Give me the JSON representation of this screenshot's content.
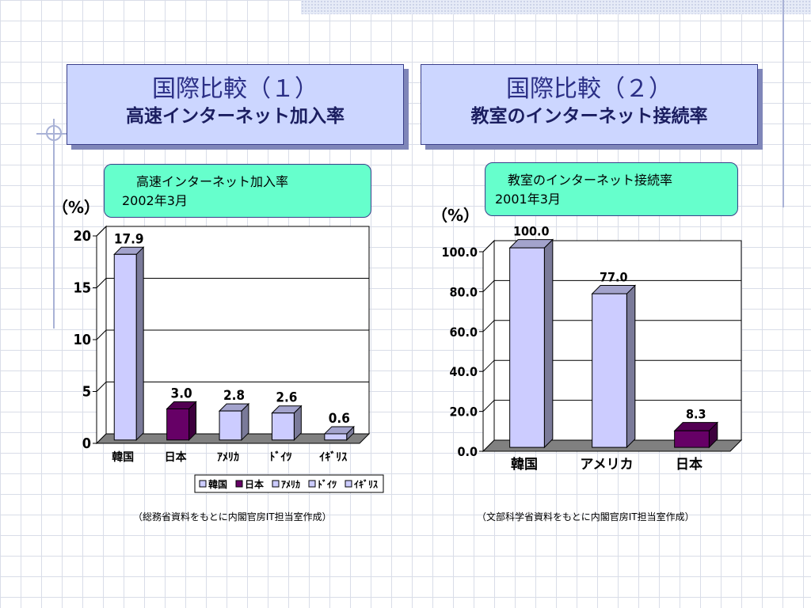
{
  "slide_left": {
    "title_line1": "国際比較（１）",
    "title_line2": "高速インターネット加入率",
    "subtitle": "高速インターネット加入率",
    "date": "2002年3月",
    "unit": "（%）",
    "source": "（総務省資料をもとに内閣官房IT担当室作成）"
  },
  "slide_right": {
    "title_line1": "国際比較（２）",
    "title_line2": "教室のインターネット接続率",
    "subtitle": "教室のインターネット接続率",
    "date": "2001年3月",
    "unit": "（%）",
    "source": "（文部科学省資料をもとに内閣官房IT担当室作成）"
  },
  "colors": {
    "light_bar": "#ccccff",
    "dark_bar": "#660066",
    "floor": "#808080",
    "title_bg": "#ccd6ff",
    "subtitle_bg": "#66ffcc"
  },
  "chart_data": [
    {
      "type": "bar",
      "title": "高速インターネット加入率",
      "categories": [
        "韓国",
        "日本",
        "ｱﾒﾘｶ",
        "ﾄﾞｲﾂ",
        "ｲｷﾞﾘｽ"
      ],
      "values": [
        17.9,
        3.0,
        2.8,
        2.6,
        0.6
      ],
      "value_labels": [
        "17.9",
        "3.0",
        "2.8",
        "2.6",
        "0.6"
      ],
      "bar_colors": [
        "#ccccff",
        "#660066",
        "#ccccff",
        "#ccccff",
        "#ccccff"
      ],
      "ylim": [
        0,
        20
      ],
      "yticks": [
        "0",
        "5",
        "10",
        "15",
        "20"
      ],
      "ylabel": "（%）",
      "grid": true,
      "legend_position": "bottom",
      "legend": [
        {
          "label": "韓国",
          "color": "#ccccff"
        },
        {
          "label": "日本",
          "color": "#660066"
        },
        {
          "label": "ｱﾒﾘｶ",
          "color": "#ccccff"
        },
        {
          "label": "ﾄﾞｲﾂ",
          "color": "#ccccff"
        },
        {
          "label": "ｲｷﾞﾘｽ",
          "color": "#ccccff"
        }
      ]
    },
    {
      "type": "bar",
      "title": "教室のインターネット接続率",
      "categories": [
        "韓国",
        "アメリカ",
        "日本"
      ],
      "values": [
        100.0,
        77.0,
        8.3
      ],
      "value_labels": [
        "100.0",
        "77.0",
        "8.3"
      ],
      "bar_colors": [
        "#ccccff",
        "#ccccff",
        "#660066"
      ],
      "ylim": [
        0,
        100
      ],
      "yticks": [
        "0.0",
        "20.0",
        "40.0",
        "60.0",
        "80.0",
        "100.0"
      ],
      "ylabel": "（%）",
      "grid": true
    }
  ]
}
